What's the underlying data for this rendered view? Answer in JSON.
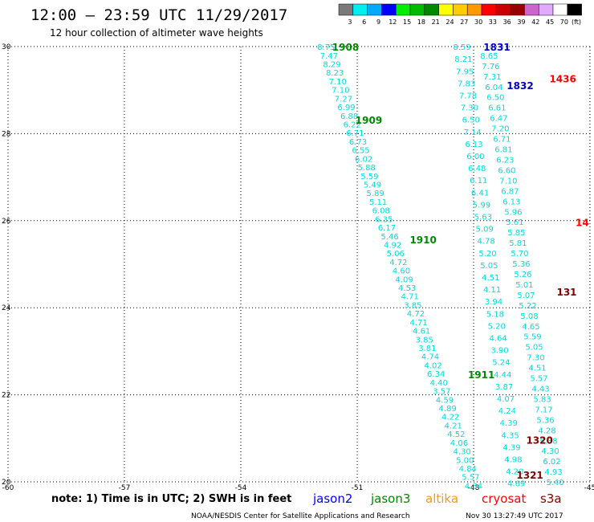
{
  "header": {
    "title": "12:00 – 23:59 UTC 11/29/2017",
    "subtitle": "12 hour collection of altimeter wave heights"
  },
  "legend": {
    "unit": "(ft)",
    "bins": [
      {
        "label": "3",
        "color": "#7a7a7a"
      },
      {
        "label": "6",
        "color": "#00eeee"
      },
      {
        "label": "9",
        "color": "#00aaff"
      },
      {
        "label": "12",
        "color": "#0000ff"
      },
      {
        "label": "15",
        "color": "#00ee00"
      },
      {
        "label": "18",
        "color": "#00bb00"
      },
      {
        "label": "21",
        "color": "#008800"
      },
      {
        "label": "24",
        "color": "#ffff00"
      },
      {
        "label": "27",
        "color": "#ffcc00"
      },
      {
        "label": "30",
        "color": "#ff9900"
      },
      {
        "label": "33",
        "color": "#ff0000"
      },
      {
        "label": "36",
        "color": "#cc0000"
      },
      {
        "label": "39",
        "color": "#990000"
      },
      {
        "label": "42",
        "color": "#cc66cc"
      },
      {
        "label": "45",
        "color": "#e0aaff"
      },
      {
        "label": "70",
        "color": "#ffffff"
      },
      {
        "label": "",
        "color": "#000000"
      }
    ]
  },
  "note": "note: 1) Time is in UTC; 2) SWH is in feet",
  "satellites": [
    {
      "name": "jason2",
      "color": "#0000ff"
    },
    {
      "name": "jason3",
      "color": "#008800"
    },
    {
      "name": "altika",
      "color": "#ff9900"
    },
    {
      "name": "cryosat",
      "color": "#ff0000"
    },
    {
      "name": "s3a",
      "color": "#880000"
    }
  ],
  "footer": {
    "credit": "NOAA/NESDIS Center for Satellite Applications and Research",
    "timestamp": "Nov 30 13:27:49 UTC 2017"
  },
  "chart_data": {
    "type": "scatter",
    "xlim": [
      -60,
      -45
    ],
    "ylim": [
      20,
      30
    ],
    "xticks": [
      {
        "v": -60,
        "label": "-60"
      },
      {
        "v": -57,
        "label": "-57"
      },
      {
        "v": -54,
        "label": "-54"
      },
      {
        "v": -51,
        "label": "-51"
      },
      {
        "v": -48,
        "label": "-48"
      },
      {
        "v": -45,
        "label": "-45"
      }
    ],
    "yticks": [
      {
        "v": 20,
        "label": "20"
      },
      {
        "v": 22,
        "label": "22"
      },
      {
        "v": 24,
        "label": "24"
      },
      {
        "v": 26,
        "label": "26"
      },
      {
        "v": 28,
        "label": "28"
      },
      {
        "v": 30,
        "label": "30"
      }
    ],
    "grid": true,
    "values_color": "#00dddd",
    "tracks": [
      {
        "name": "track-1",
        "start": [
          -51.8,
          29.98
        ],
        "end": [
          -48.0,
          19.9
        ],
        "values": [
          "8.75",
          "7.47",
          "8.29",
          "8.23",
          "7.10",
          "7.10",
          "7.27",
          "6.99",
          "6.88",
          "6.22",
          "6.71",
          "6.73",
          "6.55",
          "6.02",
          "5.88",
          "5.59",
          "5.49",
          "5.89",
          "5.11",
          "6.08",
          "6.35",
          "6.17",
          "5.46",
          "4.92",
          "5.06",
          "4.72",
          "4.60",
          "4.09",
          "4.53",
          "4.71",
          "3.85",
          "4.72",
          "4.71",
          "4.61",
          "3.85",
          "3.81",
          "4.74",
          "4.02",
          "6.34",
          "4.40",
          "3.57",
          "4.59",
          "4.89",
          "4.22",
          "4.21",
          "4.52",
          "4.06",
          "4.30",
          "5.00",
          "4.84",
          "5.57",
          "4.34"
        ]
      },
      {
        "name": "track-2",
        "start": [
          -48.3,
          29.98
        ],
        "end": [
          -46.9,
          19.95
        ],
        "values": [
          "8.59",
          "8.21",
          "7.95",
          "7.83",
          "7.78",
          "7.30",
          "6.50",
          "7.14",
          "6.13",
          "6.00",
          "6.48",
          "6.11",
          "6.41",
          "5.99",
          "5.63",
          "5.09",
          "4.78",
          "5.20",
          "5.05",
          "4.51",
          "4.11",
          "3.94",
          "5.18",
          "5.20",
          "4.64",
          "3.90",
          "5.24",
          "4.44",
          "3.87",
          "4.07",
          "4.24",
          "4.39",
          "4.35",
          "4.39",
          "4.98",
          "4.20",
          "4.69"
        ]
      },
      {
        "name": "track-3",
        "start": [
          -47.6,
          29.78
        ],
        "end": [
          -45.9,
          19.98
        ],
        "values": [
          "8.65",
          "7.76",
          "7.31",
          "6.04",
          "6.50",
          "6.61",
          "6.47",
          "7.20",
          "6.71",
          "6.81",
          "6.23",
          "6.60",
          "7.10",
          "6.87",
          "6.13",
          "5.96",
          "5.61",
          "5.85",
          "5.81",
          "5.70",
          "5.36",
          "5.26",
          "5.01",
          "5.07",
          "5.22",
          "5.08",
          "4.65",
          "5.59",
          "5.05",
          "7.30",
          "4.51",
          "5.57",
          "4.43",
          "5.83",
          "7.17",
          "5.36",
          "4.28",
          "5.38",
          "4.30",
          "6.02",
          "4.93",
          "5.40"
        ]
      }
    ],
    "time_labels": [
      {
        "text": "1908",
        "lon": -51.3,
        "lat": 29.98,
        "color": "#008800"
      },
      {
        "text": "1909",
        "lon": -50.7,
        "lat": 28.3,
        "color": "#008800"
      },
      {
        "text": "1910",
        "lon": -49.3,
        "lat": 25.55,
        "color": "#008800"
      },
      {
        "text": "1911",
        "lon": -47.8,
        "lat": 22.45,
        "color": "#008800"
      },
      {
        "text": "1831",
        "lon": -47.4,
        "lat": 29.98,
        "color": "#0000cc"
      },
      {
        "text": "1832",
        "lon": -46.8,
        "lat": 29.1,
        "color": "#0000cc"
      },
      {
        "text": "1436",
        "lon": -45.7,
        "lat": 29.25,
        "color": "#ff0000"
      },
      {
        "text": "14",
        "lon": -45.2,
        "lat": 25.95,
        "color": "#ff0000"
      },
      {
        "text": "131",
        "lon": -45.6,
        "lat": 24.35,
        "color": "#880000"
      },
      {
        "text": "1320",
        "lon": -46.3,
        "lat": 20.95,
        "color": "#880000"
      },
      {
        "text": "1321",
        "lon": -46.55,
        "lat": 20.15,
        "color": "#880000"
      }
    ]
  }
}
